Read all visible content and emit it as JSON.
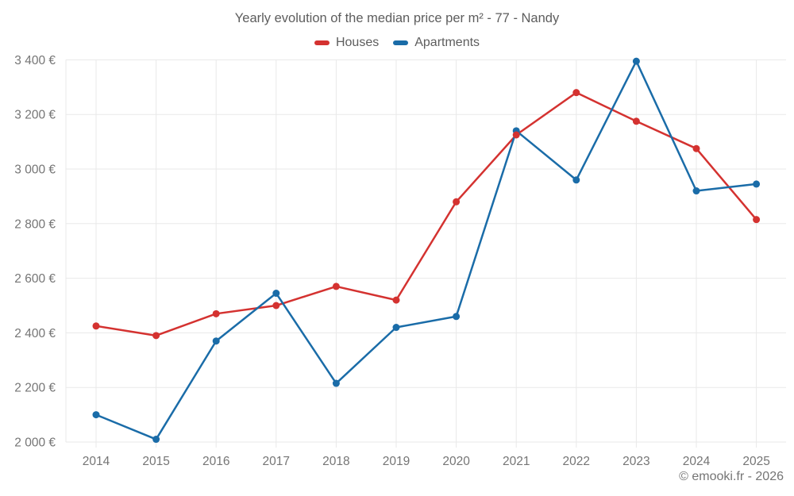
{
  "page": {
    "footer": "© emooki.fr - 2026"
  },
  "chart_data": {
    "type": "line",
    "title": "Yearly evolution of the median price per m² - 77 - Nandy",
    "x": [
      2014,
      2015,
      2016,
      2017,
      2018,
      2019,
      2020,
      2021,
      2022,
      2023,
      2024,
      2025
    ],
    "series": [
      {
        "name": "Houses",
        "color": "#d43230",
        "values": [
          2425,
          2390,
          2470,
          2500,
          2570,
          2520,
          2880,
          3125,
          3280,
          3175,
          3075,
          2815
        ]
      },
      {
        "name": "Apartments",
        "color": "#1a6ca8",
        "values": [
          2100,
          2010,
          2370,
          2545,
          2215,
          2420,
          2460,
          3140,
          2960,
          3395,
          2920,
          2945
        ]
      }
    ],
    "ylim": [
      2000,
      3400
    ],
    "ytick_step": 200,
    "ytick_labels": [
      "2 000 €",
      "2 200 €",
      "2 400 €",
      "2 600 €",
      "2 800 €",
      "3 000 €",
      "3 200 €",
      "3 400 €"
    ],
    "xlabel": "",
    "ylabel": "",
    "grid": true,
    "legend_position": "top",
    "gridline_color": "#e9e9e9",
    "text_color": "#757575"
  }
}
